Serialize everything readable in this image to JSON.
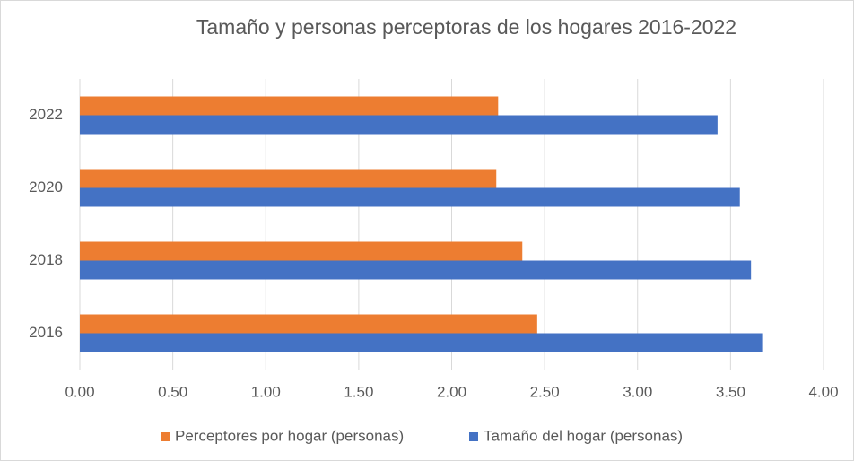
{
  "chart_data": {
    "type": "barh",
    "title": "Tamaño y personas perceptoras de los hogares 2016-2022",
    "categories": [
      "2016",
      "2018",
      "2020",
      "2022"
    ],
    "series": [
      {
        "name": "Perceptores por hogar (personas)",
        "color": "#ed7d31",
        "values": [
          2.46,
          2.38,
          2.24,
          2.25
        ]
      },
      {
        "name": "Tamaño del hogar (personas)",
        "color": "#4472c4",
        "values": [
          3.67,
          3.61,
          3.55,
          3.43
        ]
      }
    ],
    "xlim": [
      0,
      4
    ],
    "xticks": [
      {
        "value": 0,
        "label": "0.00"
      },
      {
        "value": 0.5,
        "label": "0.50"
      },
      {
        "value": 1,
        "label": "1.00"
      },
      {
        "value": 1.5,
        "label": "1.50"
      },
      {
        "value": 2,
        "label": "2.00"
      },
      {
        "value": 2.5,
        "label": "2.50"
      },
      {
        "value": 3,
        "label": "3.00"
      },
      {
        "value": 3.5,
        "label": "3.50"
      },
      {
        "value": 4,
        "label": "4.00"
      }
    ],
    "grid": true,
    "legend": "bottom"
  }
}
